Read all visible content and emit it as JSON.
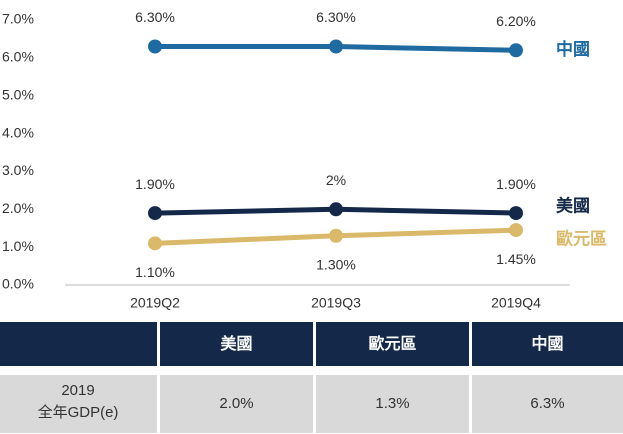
{
  "chart_data": {
    "type": "line",
    "categories": [
      "2019Q2",
      "2019Q3",
      "2019Q4"
    ],
    "series": [
      {
        "name": "中國",
        "color": "#1f6aa0",
        "values": [
          6.3,
          6.3,
          6.2
        ],
        "value_labels": [
          "6.30%",
          "6.30%",
          "6.20%"
        ]
      },
      {
        "name": "美國",
        "color": "#14294a",
        "values": [
          1.9,
          2,
          1.9
        ],
        "value_labels": [
          "1.90%",
          "2%",
          "1.90%"
        ]
      },
      {
        "name": "歐元區",
        "color": "#dab96a",
        "values": [
          1.1,
          1.3,
          1.45
        ],
        "value_labels": [
          "1.10%",
          "1.30%",
          "1.45%"
        ]
      }
    ],
    "ylim": [
      0,
      7
    ],
    "yticks": [
      {
        "value": 0,
        "label": "0.0%"
      },
      {
        "value": 1,
        "label": "1.0%"
      },
      {
        "value": 2,
        "label": "2.0%"
      },
      {
        "value": 3,
        "label": "3.0%"
      },
      {
        "value": 4,
        "label": "4.0%"
      },
      {
        "value": 5,
        "label": "5.0%"
      },
      {
        "value": 6,
        "label": "6.0%"
      },
      {
        "value": 7,
        "label": "7.0%"
      }
    ]
  },
  "table": {
    "header": [
      "美國",
      "歐元區",
      "中國"
    ],
    "rows": [
      {
        "label": [
          "2019",
          "全年GDP(e)"
        ],
        "values": [
          "2.0%",
          "1.3%",
          "6.3%"
        ]
      }
    ]
  }
}
